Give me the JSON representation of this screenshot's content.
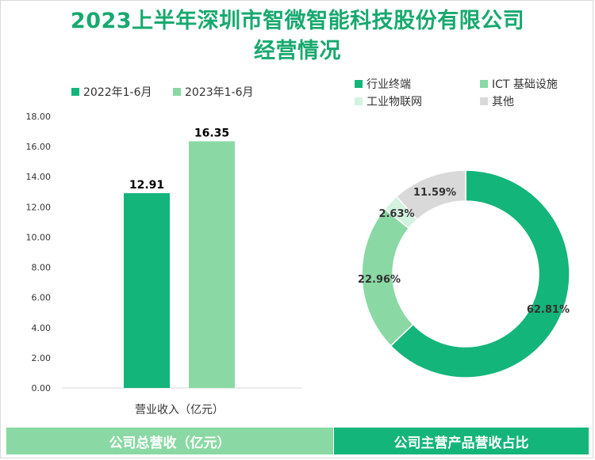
{
  "title_line1": "2023上半年深圳市智微智能科技股份有限公司",
  "title_line2": "经营情况",
  "colors": {
    "title": "#17a96e",
    "bar_2022": "#14b57a",
    "bar_2023": "#8ad9a4",
    "donut": [
      "#14b57a",
      "#8ad9a4",
      "#d3f3e0",
      "#d9d9d9"
    ]
  },
  "chart_data": [
    {
      "type": "bar",
      "title": "公司总营收（亿元）",
      "categories": [
        "营业收入（亿元）"
      ],
      "series": [
        {
          "name": "2022年1-6月",
          "values": [
            12.91
          ]
        },
        {
          "name": "2023年1-6月",
          "values": [
            16.35
          ]
        }
      ],
      "value_labels": [
        "12.91",
        "16.35"
      ],
      "ylim": [
        0,
        18
      ],
      "y_ticks": [
        "0.00",
        "2.00",
        "4.00",
        "6.00",
        "8.00",
        "10.00",
        "12.00",
        "14.00",
        "16.00",
        "18.00"
      ],
      "xlabel": "营业收入（亿元）",
      "legend_position": "top-left"
    },
    {
      "type": "pie",
      "title": "公司主营产品营收占比",
      "labels": [
        "行业终端",
        "ICT 基础设施",
        "工业物联网",
        "其他"
      ],
      "values": [
        62.81,
        22.96,
        2.63,
        11.59
      ],
      "value_labels": [
        "62.81%",
        "22.96%",
        "2.63%",
        "11.59%"
      ],
      "legend_position": "top"
    }
  ],
  "footer": {
    "left": "公司总营收（亿元）",
    "right": "公司主营产品营收占比"
  }
}
